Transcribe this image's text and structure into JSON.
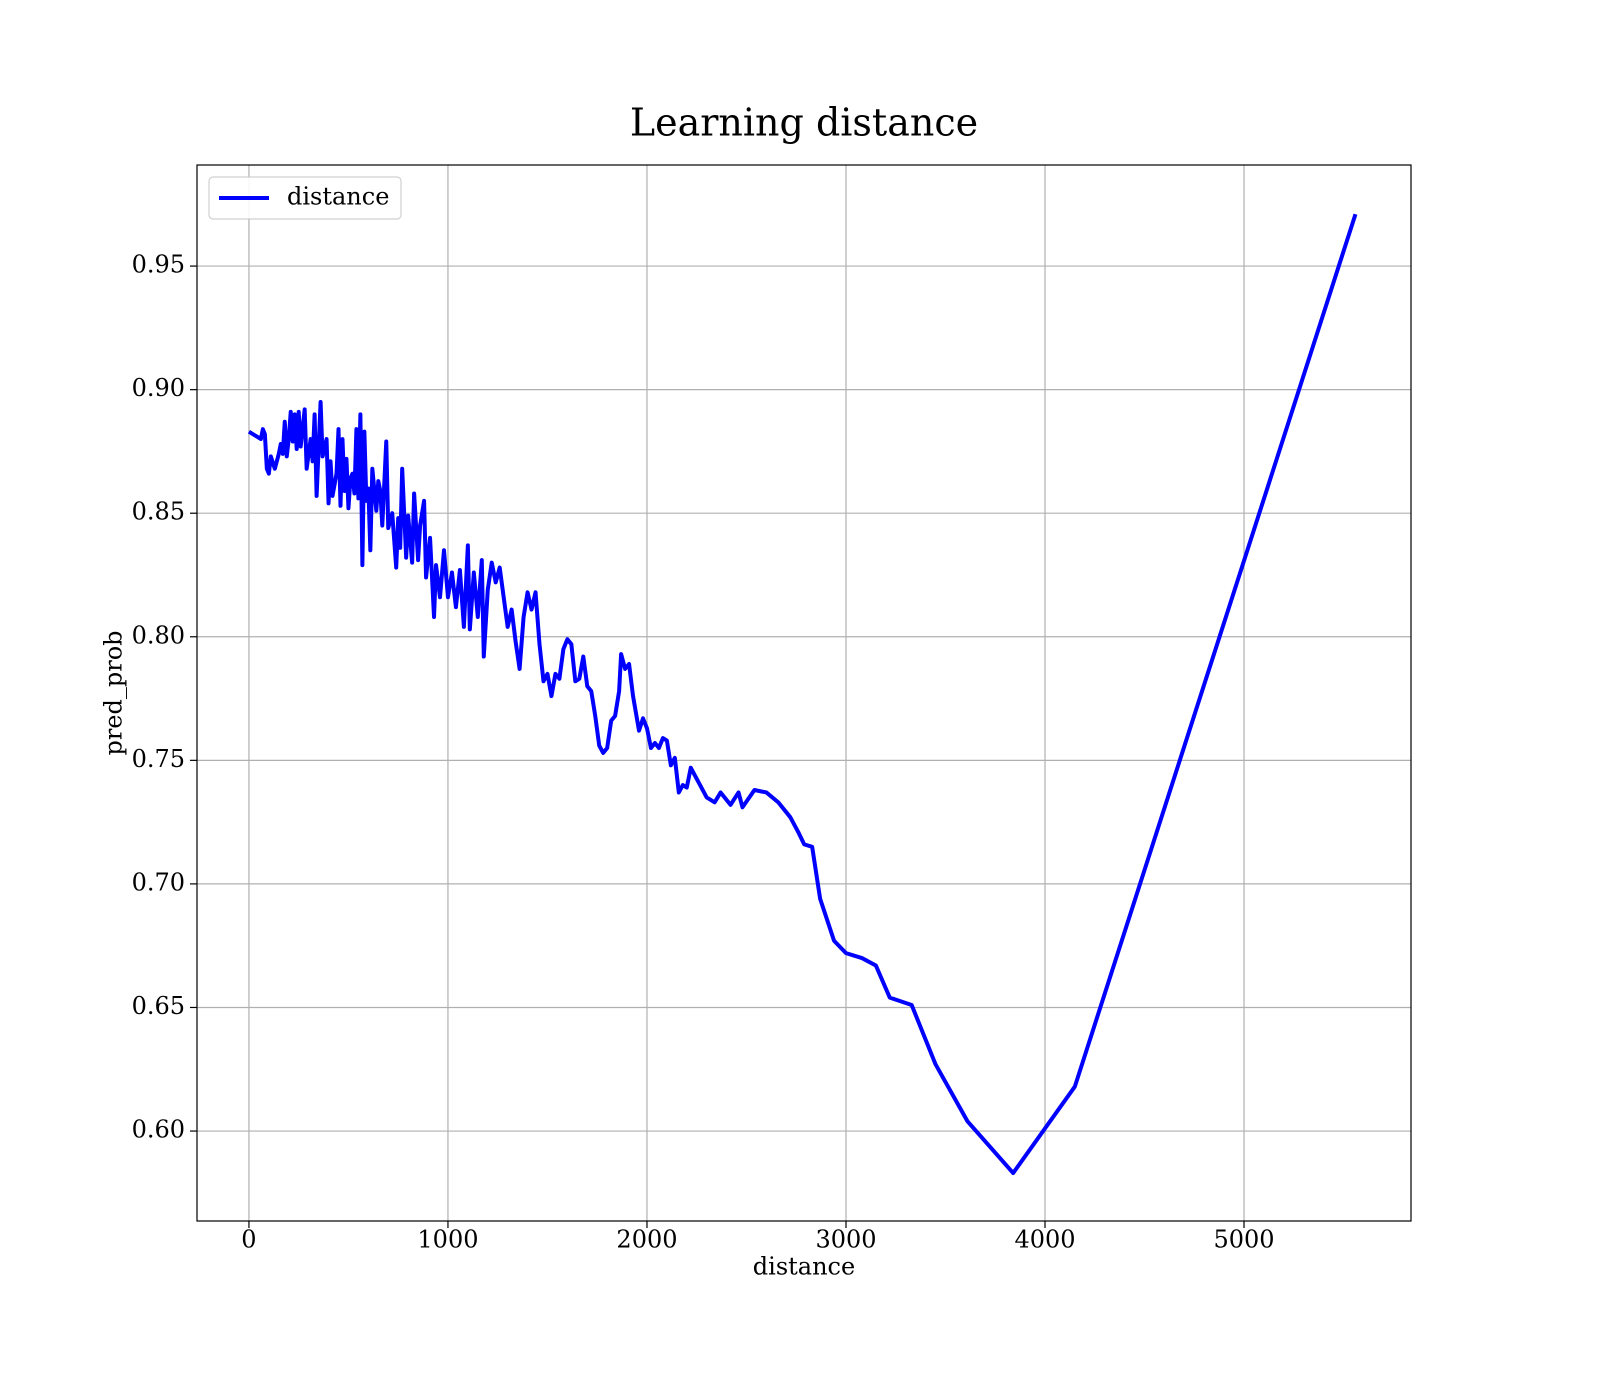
{
  "chart_data": {
    "type": "line",
    "title": "Learning distance",
    "x_label": "distance",
    "y_label": "pred_prob",
    "x": [
      0,
      40,
      60,
      70,
      80,
      90,
      100,
      110,
      130,
      150,
      160,
      170,
      180,
      190,
      200,
      210,
      220,
      230,
      240,
      250,
      260,
      280,
      290,
      310,
      320,
      330,
      340,
      360,
      370,
      390,
      400,
      410,
      420,
      440,
      450,
      460,
      470,
      480,
      490,
      500,
      510,
      520,
      530,
      540,
      550,
      560,
      570,
      580,
      590,
      600,
      610,
      620,
      640,
      650,
      660,
      670,
      690,
      700,
      720,
      740,
      750,
      760,
      770,
      790,
      800,
      820,
      830,
      850,
      860,
      880,
      890,
      910,
      930,
      940,
      960,
      980,
      1000,
      1020,
      1040,
      1060,
      1080,
      1100,
      1110,
      1130,
      1150,
      1170,
      1180,
      1200,
      1220,
      1240,
      1260,
      1280,
      1300,
      1320,
      1340,
      1360,
      1380,
      1400,
      1420,
      1440,
      1460,
      1480,
      1500,
      1520,
      1540,
      1560,
      1580,
      1600,
      1620,
      1640,
      1660,
      1680,
      1700,
      1720,
      1740,
      1760,
      1780,
      1800,
      1820,
      1840,
      1860,
      1870,
      1890,
      1910,
      1930,
      1960,
      1980,
      2000,
      2020,
      2040,
      2060,
      2080,
      2100,
      2120,
      2140,
      2160,
      2180,
      2200,
      2220,
      2260,
      2300,
      2340,
      2370,
      2420,
      2460,
      2480,
      2540,
      2600,
      2660,
      2720,
      2760,
      2790,
      2830,
      2870,
      2940,
      3000,
      3080,
      3150,
      3220,
      3330,
      3450,
      3610,
      3840,
      4150,
      5560
    ],
    "series": [
      {
        "name": "distance",
        "color": "#0000ff",
        "values": [
          0.883,
          0.881,
          0.88,
          0.884,
          0.882,
          0.868,
          0.866,
          0.873,
          0.868,
          0.874,
          0.878,
          0.874,
          0.887,
          0.873,
          0.88,
          0.891,
          0.879,
          0.89,
          0.876,
          0.891,
          0.877,
          0.892,
          0.868,
          0.88,
          0.871,
          0.89,
          0.857,
          0.895,
          0.873,
          0.88,
          0.854,
          0.871,
          0.857,
          0.866,
          0.884,
          0.853,
          0.88,
          0.859,
          0.872,
          0.852,
          0.864,
          0.866,
          0.858,
          0.884,
          0.856,
          0.89,
          0.829,
          0.883,
          0.855,
          0.86,
          0.835,
          0.868,
          0.851,
          0.863,
          0.859,
          0.845,
          0.879,
          0.844,
          0.85,
          0.828,
          0.848,
          0.836,
          0.868,
          0.832,
          0.849,
          0.83,
          0.858,
          0.831,
          0.845,
          0.855,
          0.824,
          0.84,
          0.808,
          0.829,
          0.816,
          0.835,
          0.816,
          0.826,
          0.812,
          0.827,
          0.804,
          0.837,
          0.803,
          0.826,
          0.808,
          0.831,
          0.792,
          0.819,
          0.83,
          0.822,
          0.828,
          0.816,
          0.804,
          0.811,
          0.798,
          0.787,
          0.808,
          0.818,
          0.811,
          0.818,
          0.797,
          0.782,
          0.785,
          0.776,
          0.785,
          0.783,
          0.795,
          0.799,
          0.797,
          0.782,
          0.783,
          0.792,
          0.78,
          0.778,
          0.768,
          0.756,
          0.753,
          0.755,
          0.766,
          0.768,
          0.778,
          0.793,
          0.787,
          0.789,
          0.776,
          0.762,
          0.767,
          0.763,
          0.755,
          0.757,
          0.755,
          0.759,
          0.758,
          0.748,
          0.751,
          0.737,
          0.74,
          0.739,
          0.747,
          0.741,
          0.735,
          0.733,
          0.737,
          0.732,
          0.737,
          0.731,
          0.738,
          0.737,
          0.733,
          0.727,
          0.721,
          0.716,
          0.715,
          0.694,
          0.677,
          0.672,
          0.67,
          0.667,
          0.654,
          0.651,
          0.627,
          0.604,
          0.583,
          0.618,
          0.971
        ]
      }
    ],
    "xlim": [
      -261,
      5839
    ],
    "ylim": [
      0.5636,
      0.9909
    ],
    "xticks": [
      0,
      1000,
      2000,
      3000,
      4000,
      5000
    ],
    "yticks": [
      {
        "value": 0.6,
        "label": "0.60"
      },
      0.65,
      {
        "value": 0.7,
        "label": "0.70"
      },
      0.75,
      {
        "value": 0.8,
        "label": "0.80"
      },
      0.85,
      {
        "value": 0.9,
        "label": "0.90"
      },
      0.95
    ],
    "grid": true,
    "legend": "upper left"
  }
}
